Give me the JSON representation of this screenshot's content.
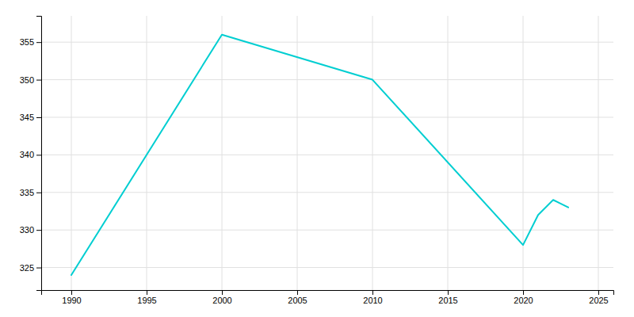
{
  "chart_data": {
    "type": "line",
    "x": [
      1990,
      2000,
      2010,
      2020,
      2021,
      2022,
      2023
    ],
    "values": [
      324,
      356,
      350,
      328,
      332,
      334,
      333
    ],
    "color": "#00CED1",
    "xlim": [
      1988,
      2026
    ],
    "ylim": [
      322,
      358.5
    ],
    "xticks": [
      1990,
      1995,
      2000,
      2005,
      2010,
      2015,
      2020,
      2025
    ],
    "yticks": [
      325,
      330,
      335,
      340,
      345,
      350,
      355
    ],
    "grid": true
  }
}
